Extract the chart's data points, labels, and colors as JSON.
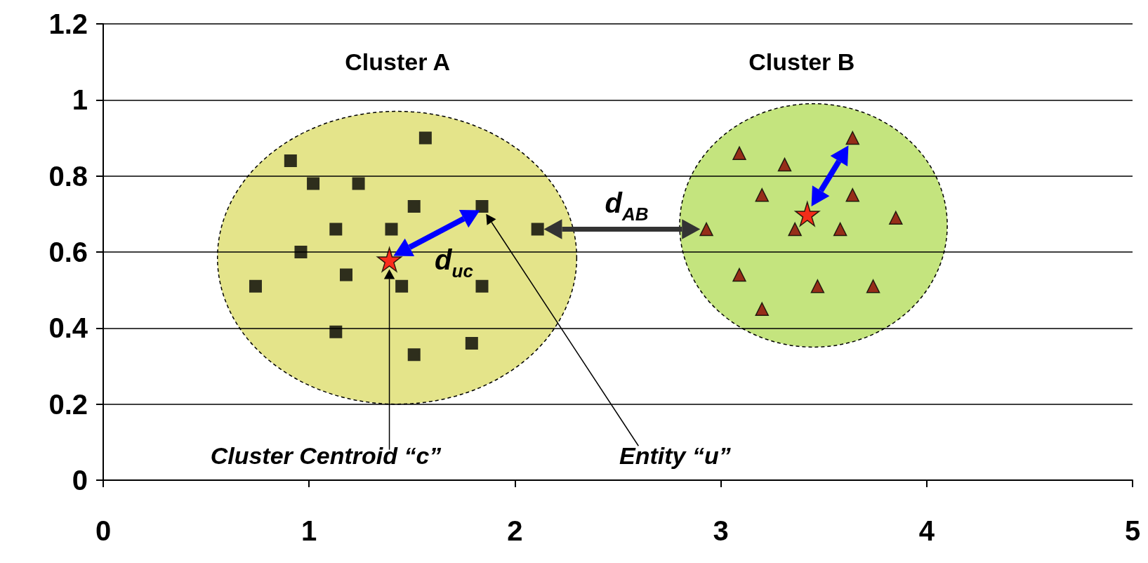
{
  "chart_data": {
    "type": "scatter",
    "series": [
      {
        "color": "#000000",
        "marker": "square",
        "x": [
          0.91,
          1.565,
          1.02,
          1.24,
          1.51,
          1.84,
          1.13,
          1.4,
          2.11,
          0.96,
          0.74,
          1.18,
          1.45,
          1.84,
          1.13,
          1.79,
          1.51
        ],
        "values": [
          0.84,
          0.9,
          0.78,
          0.78,
          0.72,
          0.72,
          0.66,
          0.66,
          0.66,
          0.6,
          0.51,
          0.54,
          0.51,
          0.51,
          0.39,
          0.36,
          0.33
        ]
      },
      {
        "color": "#8b0000",
        "marker": "triangle",
        "x": [
          3.09,
          3.64,
          3.31,
          3.2,
          3.64,
          2.93,
          3.36,
          3.58,
          3.85,
          3.09,
          3.47,
          3.74,
          3.2
        ],
        "values": [
          0.86,
          0.9,
          0.83,
          0.75,
          0.75,
          0.66,
          0.66,
          0.66,
          0.69,
          0.54,
          0.51,
          0.51,
          0.45
        ]
      },
      {
        "color": "#ff0000",
        "marker": "star",
        "x": [
          1.39,
          3.42
        ],
        "values": [
          0.58,
          0.7
        ]
      }
    ],
    "xlim": [
      0,
      5
    ],
    "xticks": [
      0,
      1,
      2,
      3,
      4,
      5
    ],
    "ylim": [
      0,
      1.2
    ],
    "yticks": [
      0,
      0.2,
      0.4,
      0.6,
      0.8,
      1,
      1.2
    ],
    "grid": "y",
    "annotations": [
      "Cluster A",
      "Cluster B",
      "d$_{uc}$",
      "d$_{AB}$",
      "Cluster Centroid “c”",
      "Entity “u”"
    ]
  }
}
